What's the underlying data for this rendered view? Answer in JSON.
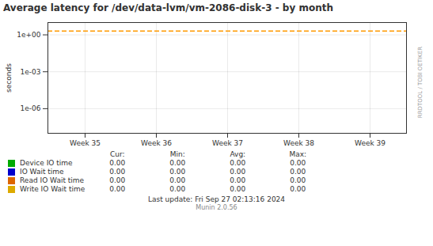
{
  "chart_data": {
    "type": "line",
    "title": "Average latency for /dev/data-lvm/vm-2086-disk-3 - by month",
    "ylabel": "seconds",
    "categories": [
      "Week 35",
      "Week 36",
      "Week 37",
      "Week 38",
      "Week 39"
    ],
    "series": [
      {
        "name": "Device IO time",
        "color": "#00aa00",
        "values": [
          null,
          null,
          null,
          null,
          null
        ]
      },
      {
        "name": "IO Wait time",
        "color": "#0000cc",
        "values": [
          null,
          null,
          null,
          null,
          null
        ]
      },
      {
        "name": "Read IO Wait time",
        "color": "#dd6600",
        "values": [
          null,
          null,
          null,
          null,
          null
        ]
      },
      {
        "name": "Write IO Wait time",
        "color": "#ddaa00",
        "values": [
          null,
          null,
          null,
          null,
          null
        ]
      }
    ],
    "reference_lines": [
      {
        "y": 2.0,
        "color": "#ff9900",
        "line_style": "dashed"
      }
    ],
    "log": "y",
    "ylim": [
      1e-08,
      10
    ],
    "yticks": [
      {
        "value": 1,
        "label": "1e+00"
      },
      {
        "value": 0.001,
        "label": "1e-03"
      },
      {
        "value": 1e-06,
        "label": "1e-06"
      }
    ],
    "grid": true,
    "table": {
      "headers": [
        "Cur:",
        "Min:",
        "Avg:",
        "Max:"
      ],
      "rows": [
        [
          "0.00",
          "0.00",
          "0.00",
          "0.00"
        ],
        [
          "0.00",
          "0.00",
          "0.00",
          "0.00"
        ],
        [
          "0.00",
          "0.00",
          "0.00",
          "0.00"
        ],
        [
          "0.00",
          "0.00",
          "0.00",
          "0.00"
        ]
      ]
    },
    "annotations": [
      "RRDTOOL / TOBI OETIKER",
      "Last update: Fri Sep 27 02:13:16 2024",
      "Munin 2.0.56"
    ]
  }
}
